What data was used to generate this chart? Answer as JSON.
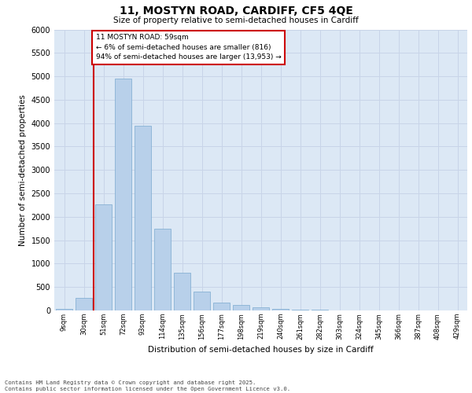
{
  "title": "11, MOSTYN ROAD, CARDIFF, CF5 4QE",
  "subtitle": "Size of property relative to semi-detached houses in Cardiff",
  "xlabel": "Distribution of semi-detached houses by size in Cardiff",
  "ylabel": "Number of semi-detached properties",
  "categories": [
    "9sqm",
    "30sqm",
    "51sqm",
    "72sqm",
    "93sqm",
    "114sqm",
    "135sqm",
    "156sqm",
    "177sqm",
    "198sqm",
    "219sqm",
    "240sqm",
    "261sqm",
    "282sqm",
    "303sqm",
    "324sqm",
    "345sqm",
    "366sqm",
    "387sqm",
    "408sqm",
    "429sqm"
  ],
  "values": [
    30,
    270,
    2270,
    4950,
    3950,
    1750,
    800,
    400,
    160,
    110,
    60,
    35,
    20,
    12,
    8,
    5,
    3,
    2,
    1,
    1,
    1
  ],
  "bar_color": "#b8d0ea",
  "bar_edge_color": "#7aaace",
  "vline_color": "#cc0000",
  "annotation_text": "11 MOSTYN ROAD: 59sqm\n← 6% of semi-detached houses are smaller (816)\n94% of semi-detached houses are larger (13,953) →",
  "annotation_box_color": "#ffffff",
  "annotation_box_edge": "#cc0000",
  "ylim": [
    0,
    6000
  ],
  "yticks": [
    0,
    500,
    1000,
    1500,
    2000,
    2500,
    3000,
    3500,
    4000,
    4500,
    5000,
    5500,
    6000
  ],
  "grid_color": "#c8d4e8",
  "bg_color": "#dce8f5",
  "footer_line1": "Contains HM Land Registry data © Crown copyright and database right 2025.",
  "footer_line2": "Contains public sector information licensed under the Open Government Licence v3.0."
}
